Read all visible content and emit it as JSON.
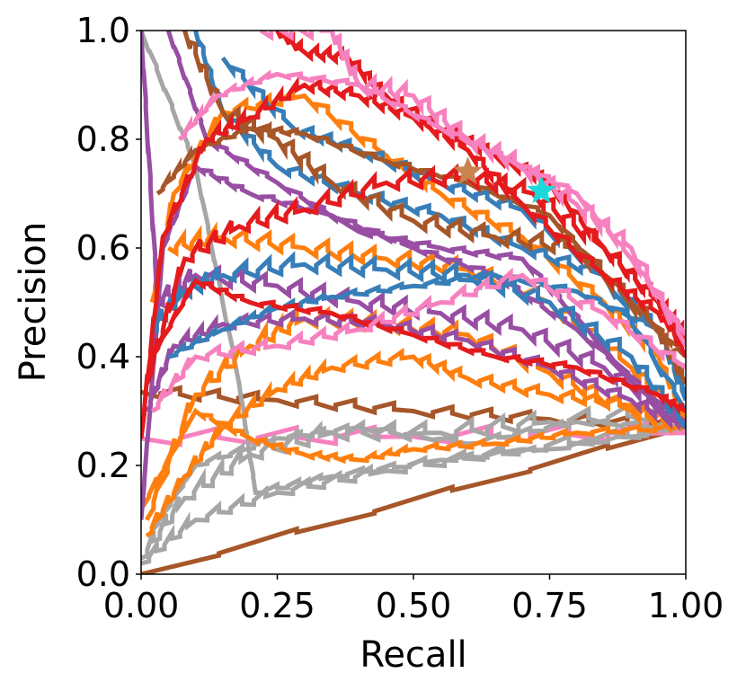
{
  "chart_data": {
    "type": "line",
    "title": "",
    "xlabel": "Recall",
    "ylabel": "Precision",
    "xlim": [
      0,
      1
    ],
    "ylim": [
      0,
      1
    ],
    "grid": false,
    "legend": "none",
    "x_ticks": [
      "0.00",
      "0.25",
      "0.50",
      "0.75",
      "1.00"
    ],
    "y_ticks": [
      "0.0",
      "0.2",
      "0.4",
      "0.6",
      "0.8",
      "1.0"
    ],
    "colors": {
      "gray": "#a6a6a6",
      "orange": "#ff7f0e",
      "purple": "#984ea3",
      "blue": "#377eb8",
      "brown": "#a65628",
      "red": "#e41a1c",
      "pink": "#f781bf",
      "star_brown": "#c8834f",
      "star_cyan": "#1ad9d9"
    },
    "series": [
      {
        "color": "brown",
        "points": [
          [
            0.0,
            0.0
          ],
          [
            1.0,
            0.27
          ]
        ]
      },
      {
        "color": "brown",
        "points": [
          [
            0.0,
            0.335
          ],
          [
            0.25,
            0.32
          ],
          [
            0.5,
            0.3
          ],
          [
            0.75,
            0.285
          ],
          [
            1.0,
            0.27
          ]
        ]
      },
      {
        "color": "pink",
        "points": [
          [
            0.0,
            0.25
          ],
          [
            0.5,
            0.253
          ],
          [
            1.0,
            0.26
          ]
        ]
      },
      {
        "color": "gray",
        "points": [
          [
            0.0,
            1.0
          ],
          [
            0.1,
            0.75
          ],
          [
            0.18,
            0.35
          ],
          [
            0.21,
            0.15
          ],
          [
            0.35,
            0.18
          ],
          [
            0.55,
            0.21
          ],
          [
            0.75,
            0.23
          ],
          [
            1.0,
            0.27
          ]
        ]
      },
      {
        "color": "gray",
        "points": [
          [
            0.0,
            0.02
          ],
          [
            0.1,
            0.1
          ],
          [
            0.25,
            0.15
          ],
          [
            0.45,
            0.19
          ],
          [
            0.7,
            0.23
          ],
          [
            1.0,
            0.27
          ]
        ]
      },
      {
        "color": "gray",
        "points": [
          [
            0.0,
            0.03
          ],
          [
            0.08,
            0.14
          ],
          [
            0.2,
            0.22
          ],
          [
            0.35,
            0.26
          ],
          [
            0.55,
            0.26
          ],
          [
            0.75,
            0.28
          ],
          [
            1.0,
            0.3
          ]
        ]
      },
      {
        "color": "gray",
        "points": [
          [
            0.02,
            0.08
          ],
          [
            0.1,
            0.2
          ],
          [
            0.25,
            0.25
          ],
          [
            0.4,
            0.27
          ],
          [
            0.6,
            0.24
          ],
          [
            0.8,
            0.28
          ],
          [
            1.0,
            0.27
          ]
        ]
      },
      {
        "color": "orange",
        "points": [
          [
            0.01,
            0.07
          ],
          [
            0.08,
            0.18
          ],
          [
            0.15,
            0.27
          ],
          [
            0.25,
            0.34
          ],
          [
            0.35,
            0.38
          ],
          [
            0.5,
            0.4
          ],
          [
            0.6,
            0.36
          ],
          [
            0.75,
            0.33
          ],
          [
            0.9,
            0.31
          ],
          [
            1.0,
            0.27
          ]
        ]
      },
      {
        "color": "orange",
        "points": [
          [
            0.01,
            0.1
          ],
          [
            0.1,
            0.33
          ],
          [
            0.2,
            0.42
          ],
          [
            0.3,
            0.47
          ],
          [
            0.45,
            0.46
          ],
          [
            0.6,
            0.44
          ],
          [
            0.75,
            0.37
          ],
          [
            0.9,
            0.3
          ],
          [
            1.0,
            0.27
          ]
        ]
      },
      {
        "color": "orange",
        "points": [
          [
            0.0,
            0.12
          ],
          [
            0.1,
            0.3
          ],
          [
            0.2,
            0.25
          ],
          [
            0.3,
            0.22
          ],
          [
            0.4,
            0.21
          ],
          [
            0.5,
            0.23
          ],
          [
            0.65,
            0.24
          ],
          [
            0.8,
            0.26
          ],
          [
            1.0,
            0.27
          ]
        ]
      },
      {
        "color": "orange",
        "points": [
          [
            0.02,
            0.5
          ],
          [
            0.06,
            0.7
          ],
          [
            0.15,
            0.85
          ],
          [
            0.3,
            0.88
          ],
          [
            0.45,
            0.77
          ],
          [
            0.55,
            0.7
          ],
          [
            0.7,
            0.62
          ],
          [
            0.85,
            0.5
          ],
          [
            0.95,
            0.4
          ],
          [
            1.0,
            0.28
          ]
        ]
      },
      {
        "color": "orange",
        "points": [
          [
            0.05,
            0.6
          ],
          [
            0.15,
            0.62
          ],
          [
            0.3,
            0.6
          ],
          [
            0.45,
            0.58
          ],
          [
            0.6,
            0.56
          ],
          [
            0.75,
            0.5
          ],
          [
            0.9,
            0.38
          ],
          [
            1.0,
            0.28
          ]
        ]
      },
      {
        "color": "purple",
        "points": [
          [
            0.0,
            0.1
          ],
          [
            0.04,
            0.6
          ],
          [
            0.1,
            0.75
          ],
          [
            0.2,
            0.7
          ],
          [
            0.35,
            0.66
          ],
          [
            0.5,
            0.6
          ],
          [
            0.65,
            0.55
          ],
          [
            0.8,
            0.45
          ],
          [
            1.0,
            0.27
          ]
        ]
      },
      {
        "color": "purple",
        "points": [
          [
            0.01,
            0.3
          ],
          [
            0.06,
            0.42
          ],
          [
            0.15,
            0.46
          ],
          [
            0.3,
            0.47
          ],
          [
            0.45,
            0.46
          ],
          [
            0.6,
            0.43
          ],
          [
            0.75,
            0.38
          ],
          [
            0.9,
            0.32
          ],
          [
            1.0,
            0.27
          ]
        ]
      },
      {
        "color": "purple",
        "points": [
          [
            0.0,
            1.0
          ],
          [
            0.03,
            0.5
          ],
          [
            0.1,
            0.55
          ],
          [
            0.25,
            0.53
          ],
          [
            0.4,
            0.5
          ],
          [
            0.55,
            0.48
          ],
          [
            0.7,
            0.45
          ],
          [
            0.85,
            0.38
          ],
          [
            1.0,
            0.28
          ]
        ]
      },
      {
        "color": "purple",
        "points": [
          [
            0.05,
            1.0
          ],
          [
            0.12,
            0.8
          ],
          [
            0.25,
            0.72
          ],
          [
            0.4,
            0.63
          ],
          [
            0.55,
            0.6
          ],
          [
            0.7,
            0.58
          ],
          [
            0.82,
            0.45
          ],
          [
            0.95,
            0.3
          ],
          [
            1.0,
            0.27
          ]
        ]
      },
      {
        "color": "blue",
        "points": [
          [
            0.1,
            1.0
          ],
          [
            0.15,
            0.85
          ],
          [
            0.25,
            0.75
          ],
          [
            0.4,
            0.7
          ],
          [
            0.55,
            0.66
          ],
          [
            0.7,
            0.6
          ],
          [
            0.85,
            0.55
          ],
          [
            1.0,
            0.3
          ]
        ]
      },
      {
        "color": "blue",
        "points": [
          [
            0.02,
            0.45
          ],
          [
            0.08,
            0.52
          ],
          [
            0.15,
            0.55
          ],
          [
            0.3,
            0.57
          ],
          [
            0.45,
            0.56
          ],
          [
            0.6,
            0.55
          ],
          [
            0.75,
            0.5
          ],
          [
            0.9,
            0.4
          ],
          [
            1.0,
            0.27
          ]
        ]
      },
      {
        "color": "blue",
        "points": [
          [
            0.05,
            0.4
          ],
          [
            0.15,
            0.45
          ],
          [
            0.25,
            0.49
          ],
          [
            0.35,
            0.51
          ],
          [
            0.5,
            0.53
          ],
          [
            0.65,
            0.55
          ],
          [
            0.8,
            0.52
          ],
          [
            0.95,
            0.45
          ],
          [
            1.0,
            0.33
          ]
        ]
      },
      {
        "color": "blue",
        "points": [
          [
            0.15,
            0.95
          ],
          [
            0.28,
            0.82
          ],
          [
            0.4,
            0.78
          ],
          [
            0.55,
            0.72
          ],
          [
            0.7,
            0.67
          ],
          [
            0.85,
            0.55
          ],
          [
            0.95,
            0.45
          ],
          [
            1.0,
            0.32
          ]
        ]
      },
      {
        "color": "brown",
        "points": [
          [
            0.08,
            1.0
          ],
          [
            0.15,
            0.85
          ],
          [
            0.25,
            0.8
          ],
          [
            0.35,
            0.72
          ],
          [
            0.5,
            0.65
          ],
          [
            0.65,
            0.62
          ],
          [
            0.8,
            0.6
          ],
          [
            0.95,
            0.45
          ],
          [
            1.0,
            0.35
          ]
        ]
      },
      {
        "color": "brown",
        "points": [
          [
            0.03,
            0.7
          ],
          [
            0.1,
            0.78
          ],
          [
            0.2,
            0.82
          ],
          [
            0.3,
            0.81
          ],
          [
            0.45,
            0.76
          ],
          [
            0.6,
            0.72
          ],
          [
            0.75,
            0.66
          ],
          [
            0.9,
            0.5
          ],
          [
            1.0,
            0.4
          ]
        ]
      },
      {
        "color": "red",
        "points": [
          [
            0.0,
            0.25
          ],
          [
            0.04,
            0.62
          ],
          [
            0.12,
            0.8
          ],
          [
            0.2,
            0.84
          ],
          [
            0.3,
            0.9
          ],
          [
            0.4,
            0.88
          ],
          [
            0.5,
            0.84
          ],
          [
            0.6,
            0.78
          ],
          [
            0.7,
            0.68
          ],
          [
            0.85,
            0.55
          ],
          [
            0.95,
            0.48
          ],
          [
            1.0,
            0.42
          ]
        ]
      },
      {
        "color": "red",
        "points": [
          [
            0.01,
            0.35
          ],
          [
            0.08,
            0.58
          ],
          [
            0.18,
            0.64
          ],
          [
            0.3,
            0.67
          ],
          [
            0.45,
            0.72
          ],
          [
            0.6,
            0.73
          ],
          [
            0.72,
            0.7
          ],
          [
            0.85,
            0.6
          ],
          [
            0.95,
            0.5
          ],
          [
            1.0,
            0.43
          ]
        ]
      },
      {
        "color": "red",
        "points": [
          [
            0.02,
            0.4
          ],
          [
            0.1,
            0.54
          ],
          [
            0.2,
            0.5
          ],
          [
            0.35,
            0.48
          ],
          [
            0.5,
            0.44
          ],
          [
            0.65,
            0.4
          ],
          [
            0.8,
            0.38
          ],
          [
            0.95,
            0.33
          ],
          [
            1.0,
            0.3
          ]
        ]
      },
      {
        "color": "red",
        "points": [
          [
            0.25,
            1.0
          ],
          [
            0.3,
            0.96
          ],
          [
            0.38,
            0.95
          ],
          [
            0.45,
            0.88
          ],
          [
            0.55,
            0.82
          ],
          [
            0.65,
            0.77
          ],
          [
            0.75,
            0.72
          ],
          [
            0.85,
            0.6
          ],
          [
            0.95,
            0.5
          ],
          [
            1.0,
            0.4
          ]
        ]
      },
      {
        "color": "pink",
        "points": [
          [
            0.22,
            1.0
          ],
          [
            0.35,
            1.0
          ],
          [
            0.4,
            0.9
          ],
          [
            0.5,
            0.88
          ],
          [
            0.6,
            0.8
          ],
          [
            0.7,
            0.75
          ],
          [
            0.8,
            0.68
          ],
          [
            0.9,
            0.6
          ],
          [
            1.0,
            0.42
          ]
        ]
      },
      {
        "color": "pink",
        "points": [
          [
            0.07,
            0.8
          ],
          [
            0.14,
            0.88
          ],
          [
            0.25,
            0.92
          ],
          [
            0.4,
            0.9
          ],
          [
            0.55,
            0.82
          ],
          [
            0.68,
            0.76
          ],
          [
            0.8,
            0.7
          ],
          [
            0.9,
            0.58
          ],
          [
            1.0,
            0.44
          ]
        ]
      },
      {
        "color": "pink",
        "points": [
          [
            0.02,
            0.3
          ],
          [
            0.1,
            0.4
          ],
          [
            0.25,
            0.42
          ],
          [
            0.4,
            0.45
          ],
          [
            0.55,
            0.5
          ],
          [
            0.7,
            0.55
          ],
          [
            0.85,
            0.48
          ],
          [
            1.0,
            0.38
          ]
        ]
      }
    ],
    "markers": [
      {
        "color": "star_brown",
        "x": 0.6,
        "y": 0.74
      },
      {
        "color": "star_cyan",
        "x": 0.735,
        "y": 0.705
      }
    ]
  }
}
